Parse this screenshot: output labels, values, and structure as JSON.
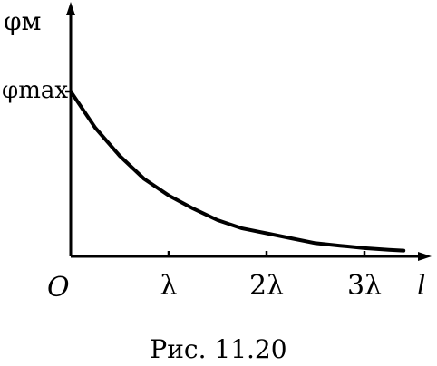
{
  "chart_data": {
    "type": "line",
    "xlabel": "l",
    "ylabel": "φм",
    "origin_label": "O",
    "ymax_label": "φmax",
    "xticks": [
      {
        "value": 1,
        "label": "λ"
      },
      {
        "value": 2,
        "label": "2λ"
      },
      {
        "value": 3,
        "label": "3λ"
      }
    ],
    "xlim": [
      0,
      3.85
    ],
    "ylim": [
      0,
      1.45
    ],
    "series": [
      {
        "x": [
          0,
          0.25,
          0.5,
          0.75,
          1,
          1.25,
          1.5,
          1.75,
          2,
          2.25,
          2.5,
          2.75,
          3,
          3.25,
          3.4
        ],
        "y": [
          1,
          0.78,
          0.61,
          0.47,
          0.37,
          0.29,
          0.22,
          0.17,
          0.14,
          0.11,
          0.08,
          0.065,
          0.05,
          0.04,
          0.035
        ]
      }
    ],
    "grid": false
  },
  "figure": {
    "caption": "Рис. 11.20"
  }
}
